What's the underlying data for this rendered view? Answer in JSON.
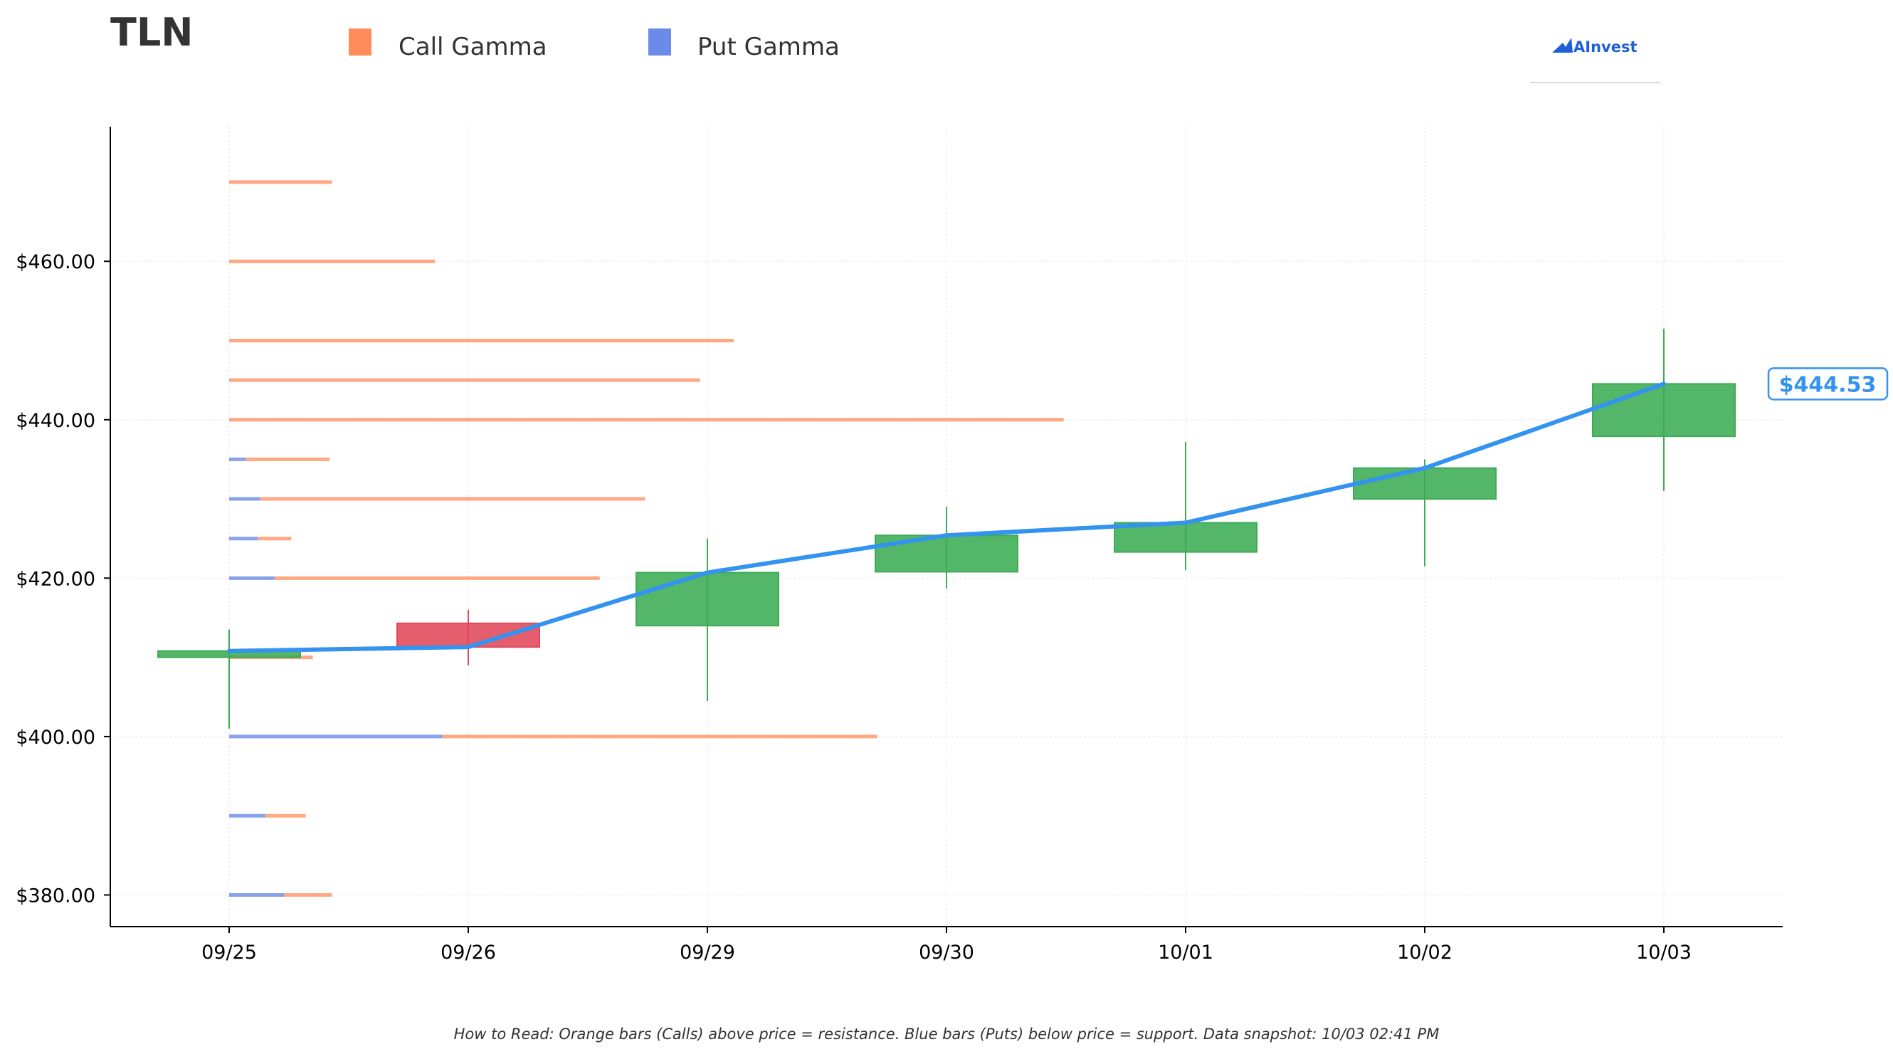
{
  "chart_data": {
    "type": "candlestick",
    "ticker": "TLN",
    "legend": [
      {
        "label": "Call Gamma",
        "color": "#ff8c5a"
      },
      {
        "label": "Put Gamma",
        "color": "#6b8be8"
      }
    ],
    "logo_text": "AInvest",
    "dates": [
      "09/25",
      "09/26",
      "09/29",
      "09/30",
      "10/01",
      "10/02",
      "10/03"
    ],
    "ohlc": [
      {
        "date": "09/25",
        "open": 410.0,
        "high": 413.5,
        "low": 401.0,
        "close": 410.8
      },
      {
        "date": "09/26",
        "open": 414.3,
        "high": 416.0,
        "low": 409.0,
        "close": 411.3
      },
      {
        "date": "09/29",
        "open": 414.0,
        "high": 425.0,
        "low": 404.5,
        "close": 420.7
      },
      {
        "date": "09/30",
        "open": 420.8,
        "high": 429.0,
        "low": 418.7,
        "close": 425.4
      },
      {
        "date": "10/01",
        "open": 423.3,
        "high": 437.2,
        "low": 421.0,
        "close": 427.0
      },
      {
        "date": "10/02",
        "open": 430.0,
        "high": 435.0,
        "low": 421.5,
        "close": 433.9
      },
      {
        "date": "10/03",
        "open": 437.9,
        "high": 451.5,
        "low": 431.0,
        "close": 444.53
      }
    ],
    "price_line": [
      410.8,
      411.3,
      420.7,
      425.4,
      427.0,
      433.9,
      444.53
    ],
    "last_price_label": "$444.53",
    "gamma_levels": [
      {
        "strike": 470,
        "call": 0.43,
        "put": 0.0
      },
      {
        "strike": 460,
        "call": 0.86,
        "put": 0.0
      },
      {
        "strike": 450,
        "call": 2.11,
        "put": 0.0
      },
      {
        "strike": 445,
        "call": 1.97,
        "put": 0.0
      },
      {
        "strike": 440,
        "call": 3.49,
        "put": 0.0
      },
      {
        "strike": 435,
        "call": 0.35,
        "put": 0.07
      },
      {
        "strike": 430,
        "call": 1.61,
        "put": 0.13
      },
      {
        "strike": 425,
        "call": 0.14,
        "put": 0.12
      },
      {
        "strike": 420,
        "call": 1.36,
        "put": 0.19
      },
      {
        "strike": 410,
        "call": 0.35,
        "put": 0.0
      },
      {
        "strike": 400,
        "call": 1.82,
        "put": 0.89
      },
      {
        "strike": 390,
        "call": 0.17,
        "put": 0.15
      },
      {
        "strike": 380,
        "call": 0.2,
        "put": 0.23
      }
    ],
    "gamma_unit_note": "bar lengths in units of one date-interval on the x axis",
    "y_ticks": [
      "$380.00",
      "$400.00",
      "$420.00",
      "$440.00",
      "$460.00"
    ],
    "y_tick_values": [
      380,
      400,
      420,
      440,
      460
    ],
    "ylim": [
      376,
      477
    ],
    "grid": true,
    "colors": {
      "up": "#3cac54",
      "down": "#e0485a",
      "line": "#3493ef",
      "call": "#ff8c5a",
      "put": "#6b8be8"
    },
    "footnote": "How to Read: Orange bars (Calls) above price = resistance. Blue bars (Puts) below price = support. Data snapshot: 10/03 02:41 PM"
  }
}
